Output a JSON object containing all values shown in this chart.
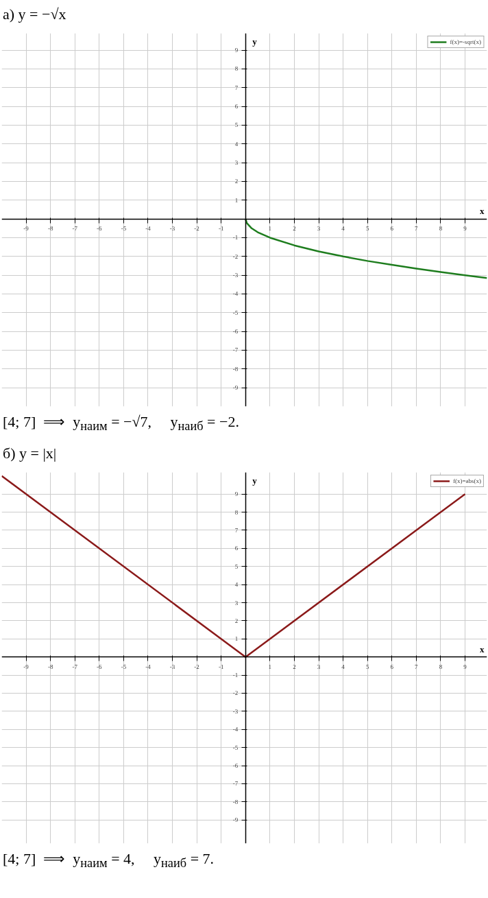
{
  "chart_data": [
    {
      "type": "line",
      "title": "а) y = −√x",
      "xlabel": "x",
      "ylabel": "y",
      "x": [
        0,
        0.05,
        0.25,
        0.5,
        1,
        2,
        3,
        4,
        5,
        6,
        7,
        8,
        9,
        9.9
      ],
      "series": [
        {
          "name": "f(x)=-sqrt(x)",
          "color": "#1e7d1e",
          "values": [
            0,
            -0.22,
            -0.5,
            -0.71,
            -1,
            -1.41,
            -1.73,
            -2,
            -2.24,
            -2.45,
            -2.65,
            -2.83,
            -3,
            -3.15
          ]
        }
      ],
      "xlim": [
        -10,
        9.9
      ],
      "ylim": [
        -10,
        9.9
      ],
      "xticks": [
        -9,
        -8,
        -7,
        -6,
        -5,
        -4,
        -3,
        -2,
        -1,
        1,
        2,
        3,
        4,
        5,
        6,
        7,
        8,
        9
      ],
      "yticks": [
        -9,
        -8,
        -7,
        -6,
        -5,
        -4,
        -3,
        -2,
        -1,
        1,
        2,
        3,
        4,
        5,
        6,
        7,
        8,
        9
      ],
      "grid": true,
      "legend": "top right",
      "annotations": [
        "[4; 7]  ⟹  y$_{наим}$ = −√7,     y$_{наиб}$ = −2."
      ]
    },
    {
      "type": "line",
      "title": "б) y = |x|",
      "xlabel": "x",
      "ylabel": "y",
      "x": [
        -10,
        0,
        9
      ],
      "series": [
        {
          "name": "f(x)=abs(x)",
          "color": "#8b1a1a",
          "values": [
            10,
            0,
            9
          ]
        }
      ],
      "xlim": [
        -10,
        9.9
      ],
      "ylim": [
        -10.3,
        10.2
      ],
      "xticks": [
        -9,
        -8,
        -7,
        -6,
        -5,
        -4,
        -3,
        -2,
        -1,
        1,
        2,
        3,
        4,
        5,
        6,
        7,
        8,
        9
      ],
      "yticks": [
        -9,
        -8,
        -7,
        -6,
        -5,
        -4,
        -3,
        -2,
        -1,
        1,
        2,
        3,
        4,
        5,
        6,
        7,
        8,
        9
      ],
      "grid": true,
      "legend": "top right",
      "annotations": [
        "[4; 7]  ⟹  y$_{наим}$ = 4,     y$_{наиб}$ = 7."
      ]
    }
  ]
}
